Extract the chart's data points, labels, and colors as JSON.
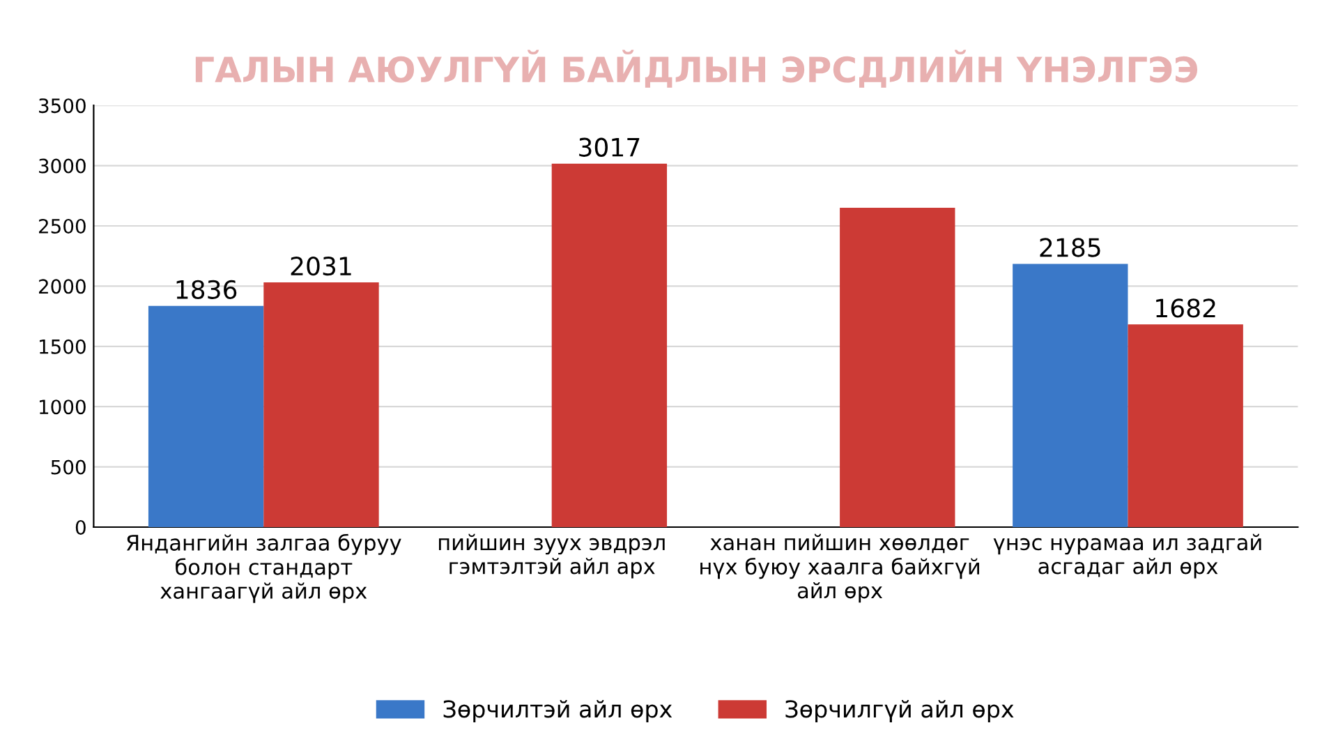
{
  "chart_data": {
    "type": "bar",
    "title": "ГАЛЫН АЮУЛГҮЙ БАЙДЛЫН ЭРСДЛИЙН ҮНЭЛГЭЭ",
    "categories": [
      "Яндангийн залгаа буруу\nболон стандарт\nхангаагүй айл өрх",
      "пийшин зуух эвдрэл\nгэмтэлтэй айл арх",
      "ханан пийшин хөөлдөг\nнүх буюу хаалга байхгүй\nайл өрх",
      "үнэс нурамаа ил задгай\nасгадаг айл өрх"
    ],
    "series": [
      {
        "name": "Зөрчилтэй айл өрх",
        "color": "#3a78c8",
        "values": [
          1836,
          null,
          null,
          2185
        ],
        "value_labels": [
          "1836",
          null,
          null,
          "2185"
        ]
      },
      {
        "name": "Зөрчилгүй айл өрх",
        "color": "#cc3a35",
        "values": [
          2031,
          3017,
          2650,
          1682
        ],
        "value_labels": [
          "2031",
          "3017",
          null,
          "1682"
        ]
      }
    ],
    "ylim": [
      0,
      3500
    ],
    "yticks": [
      0,
      500,
      1000,
      1500,
      2000,
      2500,
      3000,
      3500
    ],
    "grid": "y",
    "legend": "bottom"
  }
}
